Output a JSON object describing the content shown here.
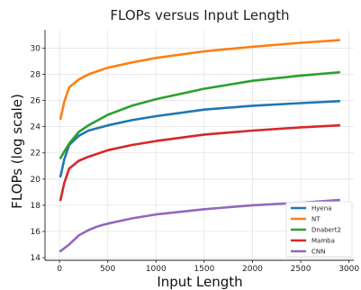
{
  "chart_data": {
    "type": "line",
    "title": "FLOPs versus Input Length",
    "xlabel": "Input Length",
    "ylabel": "FLOPs (log scale)",
    "xlim": [
      -150,
      3050
    ],
    "ylim": [
      13.8,
      31.4
    ],
    "xticks": [
      0,
      500,
      1000,
      1500,
      2000,
      2500,
      3000
    ],
    "yticks": [
      14,
      16,
      18,
      20,
      22,
      24,
      26,
      28,
      30
    ],
    "grid": true,
    "legend_position": "lower-right",
    "series": [
      {
        "name": "Hyena",
        "color": "#1f77b4",
        "x": [
          10,
          50,
          100,
          200,
          300,
          500,
          750,
          1000,
          1500,
          2000,
          2500,
          2900
        ],
        "values": [
          20.2,
          21.5,
          22.6,
          23.3,
          23.7,
          24.1,
          24.5,
          24.8,
          25.3,
          25.6,
          25.8,
          25.95
        ]
      },
      {
        "name": "NT",
        "color": "#ff7f0e",
        "x": [
          10,
          50,
          100,
          200,
          300,
          500,
          750,
          1000,
          1500,
          2000,
          2500,
          2900
        ],
        "values": [
          24.6,
          25.9,
          27.0,
          27.6,
          28.0,
          28.5,
          28.9,
          29.25,
          29.75,
          30.1,
          30.4,
          30.6
        ]
      },
      {
        "name": "Dnabert2",
        "color": "#2ca02c",
        "x": [
          10,
          50,
          100,
          200,
          300,
          500,
          750,
          1000,
          1500,
          2000,
          2500,
          2900
        ],
        "values": [
          21.6,
          22.1,
          22.7,
          23.6,
          24.1,
          24.9,
          25.6,
          26.1,
          26.9,
          27.5,
          27.9,
          28.15
        ]
      },
      {
        "name": "Mamba",
        "color": "#d62728",
        "x": [
          10,
          50,
          100,
          200,
          300,
          500,
          750,
          1000,
          1500,
          2000,
          2500,
          2900
        ],
        "values": [
          18.4,
          19.7,
          20.8,
          21.4,
          21.7,
          22.2,
          22.6,
          22.9,
          23.4,
          23.7,
          23.95,
          24.1
        ]
      },
      {
        "name": "CNN",
        "color": "#9467bd",
        "x": [
          10,
          100,
          200,
          300,
          400,
          500,
          750,
          1000,
          1500,
          2000,
          2500,
          2900
        ],
        "values": [
          14.5,
          15.0,
          15.7,
          16.1,
          16.4,
          16.6,
          17.0,
          17.3,
          17.7,
          18.0,
          18.2,
          18.4
        ]
      }
    ]
  }
}
